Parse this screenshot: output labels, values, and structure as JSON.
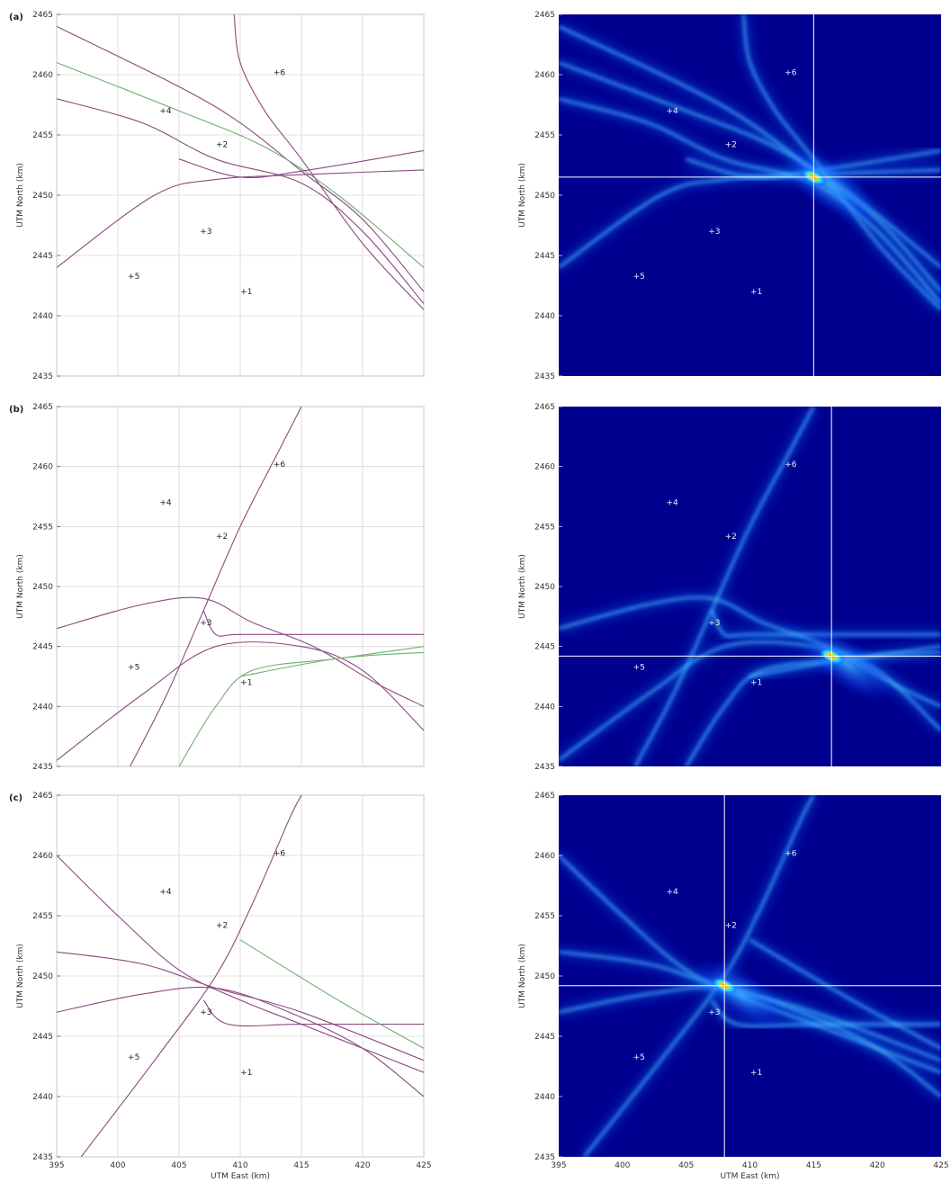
{
  "panels": [
    {
      "label": "(a)",
      "hline": 2451.5,
      "vline": 415.0
    },
    {
      "label": "(b)",
      "hline": 2444.2,
      "vline": 416.4
    },
    {
      "label": "(c)",
      "hline": 2449.2,
      "vline": 408.0
    }
  ],
  "stations": [
    {
      "text": "+1",
      "x": 410.5,
      "y": 2442.0
    },
    {
      "text": "+2",
      "x": 408.5,
      "y": 2454.2
    },
    {
      "text": "+3",
      "x": 407.2,
      "y": 2447.0
    },
    {
      "text": "+4",
      "x": 403.9,
      "y": 2457.0
    },
    {
      "text": "+5",
      "x": 401.3,
      "y": 2443.3
    },
    {
      "text": "+6",
      "x": 413.2,
      "y": 2460.2
    }
  ],
  "colors": {
    "hyperbola": "#8a4a80",
    "hyperbola_alt": "#6fae6f",
    "heat_bg": "#00008f",
    "crosshair": "#ffffff"
  },
  "chart_data": [
    {
      "type": "line",
      "panel": "a-left",
      "xlabel": "",
      "ylabel": "UTM North (km)",
      "xlim": [
        395,
        425
      ],
      "ylim": [
        2435,
        2465
      ],
      "xticks": [],
      "yticks": [
        "2465",
        "2460",
        "2455",
        "2450",
        "2445",
        "2440",
        "2435"
      ],
      "grid": true,
      "series": [
        {
          "values": [
            [
              395,
              2464
            ],
            [
              405,
              2459
            ],
            [
              410,
              2456
            ],
            [
              415,
              2452
            ],
            [
              420,
              2448
            ],
            [
              425,
              2442
            ]
          ]
        },
        {
          "values": [
            [
              395,
              2461
            ],
            [
              405,
              2457
            ],
            [
              412,
              2454
            ],
            [
              418,
              2450
            ],
            [
              425,
              2444
            ]
          ],
          "alt": true
        },
        {
          "values": [
            [
              395,
              2458
            ],
            [
              402,
              2456
            ],
            [
              408,
              2453
            ],
            [
              415,
              2451
            ],
            [
              420,
              2447
            ],
            [
              425,
              2441
            ]
          ]
        },
        {
          "values": [
            [
              395,
              2444
            ],
            [
              403,
              2450
            ],
            [
              408,
              2451.3
            ],
            [
              415,
              2451.7
            ],
            [
              425,
              2452.1
            ]
          ]
        },
        {
          "values": [
            [
              405,
              2453
            ],
            [
              410,
              2451.5
            ],
            [
              415,
              2452
            ],
            [
              425,
              2453.7
            ]
          ]
        },
        {
          "values": [
            [
              409.5,
              2465
            ],
            [
              410,
              2461
            ],
            [
              412,
              2457
            ],
            [
              415,
              2453
            ],
            [
              420,
              2446
            ],
            [
              425,
              2440.5
            ]
          ]
        }
      ]
    },
    {
      "type": "heatmap",
      "panel": "a-right",
      "xlabel": "",
      "ylabel": "UTM North (km)",
      "xlim": [
        395,
        425
      ],
      "ylim": [
        2435,
        2465
      ],
      "yticks": [
        "2465",
        "2460",
        "2455",
        "2450",
        "2445",
        "2440",
        "2435"
      ],
      "peak": [
        415.0,
        2451.5
      ]
    },
    {
      "type": "line",
      "panel": "b-left",
      "xlabel": "",
      "ylabel": "UTM North (km)",
      "xlim": [
        395,
        425
      ],
      "ylim": [
        2435,
        2465
      ],
      "yticks": [
        "2465",
        "2460",
        "2455",
        "2450",
        "2445",
        "2440",
        "2435"
      ],
      "grid": true,
      "series": [
        {
          "values": [
            [
              401,
              2435
            ],
            [
              404,
              2441
            ],
            [
              407,
              2448
            ],
            [
              410,
              2455
            ],
            [
              413,
              2461
            ],
            [
              415,
              2465
            ]
          ]
        },
        {
          "values": [
            [
              395,
              2446.5
            ],
            [
              402,
              2448.5
            ],
            [
              407,
              2449
            ],
            [
              411,
              2447
            ],
            [
              416,
              2445
            ],
            [
              421,
              2442
            ],
            [
              425,
              2440
            ]
          ]
        },
        {
          "values": [
            [
              407,
              2448
            ],
            [
              408,
              2446
            ],
            [
              410,
              2446
            ],
            [
              418,
              2446
            ],
            [
              425,
              2446
            ]
          ]
        },
        {
          "values": [
            [
              395,
              2435.5
            ],
            [
              402,
              2441
            ],
            [
              408,
              2445
            ],
            [
              415,
              2445
            ],
            [
              420,
              2443
            ],
            [
              425,
              2438
            ]
          ]
        },
        {
          "values": [
            [
              405,
              2435
            ],
            [
              408,
              2440
            ],
            [
              411,
              2443
            ],
            [
              418,
              2444
            ],
            [
              425,
              2445
            ]
          ],
          "alt": true
        },
        {
          "values": [
            [
              410,
              2442.5
            ],
            [
              418,
              2444
            ],
            [
              425,
              2444.5
            ]
          ],
          "alt": true
        }
      ]
    },
    {
      "type": "heatmap",
      "panel": "b-right",
      "xlabel": "",
      "ylabel": "UTM North (km)",
      "xlim": [
        395,
        425
      ],
      "ylim": [
        2435,
        2465
      ],
      "yticks": [
        "2465",
        "2460",
        "2455",
        "2450",
        "2445",
        "2440",
        "2435"
      ],
      "peak": [
        416.4,
        2444.2
      ]
    },
    {
      "type": "line",
      "panel": "c-left",
      "xlabel": "UTM East (km)",
      "ylabel": "UTM North (km)",
      "xlim": [
        395,
        425
      ],
      "ylim": [
        2435,
        2465
      ],
      "xticks": [
        "395",
        "400",
        "405",
        "410",
        "415",
        "420",
        "425"
      ],
      "yticks": [
        "2465",
        "2460",
        "2455",
        "2450",
        "2445",
        "2440",
        "2435"
      ],
      "grid": true,
      "series": [
        {
          "values": [
            [
              397,
              2435
            ],
            [
              403,
              2443
            ],
            [
              408,
              2450
            ],
            [
              411,
              2456
            ],
            [
              414,
              2463
            ],
            [
              415,
              2465
            ]
          ]
        },
        {
          "values": [
            [
              395,
              2460
            ],
            [
              400,
              2455
            ],
            [
              405,
              2450.5
            ],
            [
              410,
              2448
            ],
            [
              415,
              2446
            ],
            [
              425,
              2442
            ]
          ]
        },
        {
          "values": [
            [
              395,
              2452
            ],
            [
              402,
              2451
            ],
            [
              408,
              2449
            ],
            [
              415,
              2447
            ],
            [
              425,
              2443
            ]
          ]
        },
        {
          "values": [
            [
              395,
              2447
            ],
            [
              402,
              2448.5
            ],
            [
              408,
              2449
            ],
            [
              414,
              2447
            ],
            [
              420,
              2444
            ],
            [
              425,
              2440
            ]
          ]
        },
        {
          "values": [
            [
              407,
              2448
            ],
            [
              409,
              2446
            ],
            [
              415,
              2446
            ],
            [
              425,
              2446
            ]
          ]
        },
        {
          "values": [
            [
              410,
              2453
            ],
            [
              418,
              2448
            ],
            [
              425,
              2444
            ]
          ],
          "alt": true
        }
      ]
    },
    {
      "type": "heatmap",
      "panel": "c-right",
      "xlabel": "UTM East (km)",
      "ylabel": "UTM North (km)",
      "xlim": [
        395,
        425
      ],
      "ylim": [
        2435,
        2465
      ],
      "xticks": [
        "395",
        "400",
        "405",
        "410",
        "415",
        "420",
        "425"
      ],
      "yticks": [
        "2465",
        "2460",
        "2455",
        "2450",
        "2445",
        "2440",
        "2435"
      ],
      "peak": [
        408.0,
        2449.2
      ]
    }
  ]
}
